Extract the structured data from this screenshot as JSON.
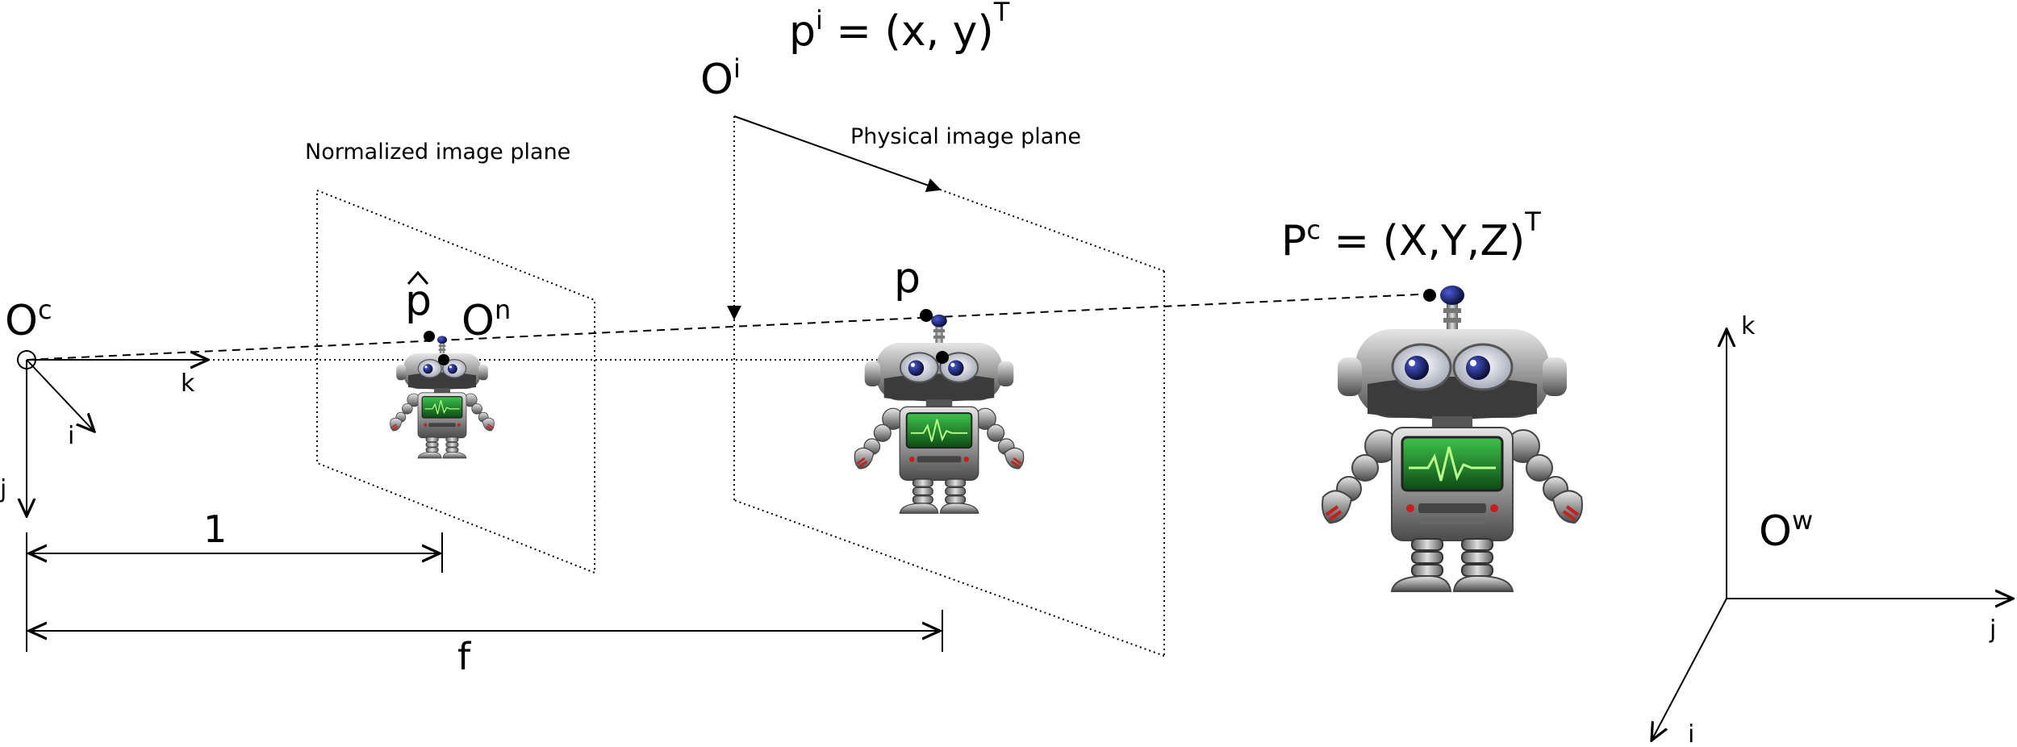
{
  "labels": {
    "camera_origin": "O",
    "camera_origin_sup": "c",
    "camera_k": "k",
    "camera_i": "i",
    "camera_j": "j",
    "normalized_plane": "Normalized image plane",
    "p_hat": "p",
    "normalized_origin": "O",
    "normalized_origin_sup": "n",
    "physical_plane": "Physical image plane",
    "image_origin": "O",
    "image_origin_sup": "i",
    "pi_eq_base": "p",
    "pi_eq_sup": "i",
    "pi_eq_rest": " = (x, y)",
    "pi_eq_T": "T",
    "p_label": "p",
    "Pc_base": "P",
    "Pc_sup": "c",
    "Pc_rest": " = (X,Y,Z)",
    "Pc_T": "T",
    "dist_one": "1",
    "dist_f": "f",
    "world_origin": "O",
    "world_origin_sup": "w",
    "world_k": "k",
    "world_j": "j",
    "world_i": "i"
  },
  "colors": {
    "ink": "#000000",
    "robot_metal": "#8c8c8c",
    "robot_dark": "#3a3a3a",
    "robot_screen": "#1f8a2a",
    "robot_eye": "#1c2a8c"
  },
  "icons": [
    "robot-icon"
  ]
}
